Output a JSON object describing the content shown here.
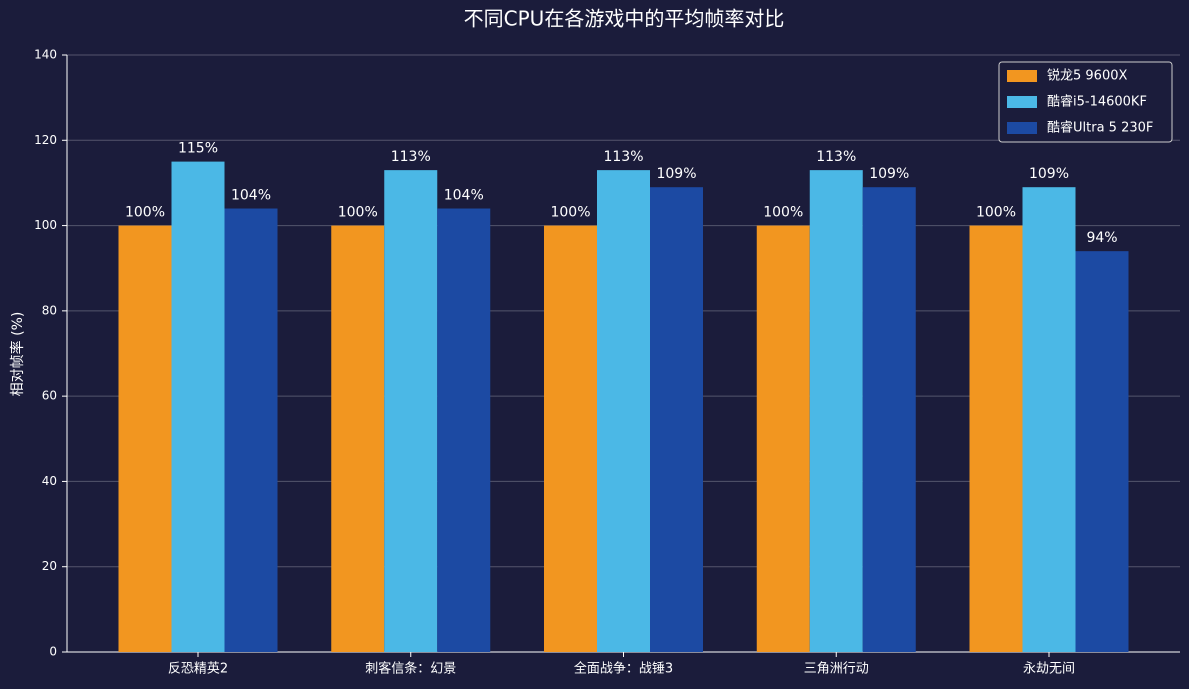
{
  "chart_data": {
    "type": "bar",
    "title": "不同CPU在各游戏中的平均帧率对比",
    "y_label": "相对帧率 (%)",
    "categories": [
      "反恐精英2",
      "刺客信条：幻景",
      "全面战争：战锤3",
      "三角洲行动",
      "永劫无间"
    ],
    "series": [
      {
        "name": "锐龙5 9600X",
        "color": "#f29620",
        "values": [
          100,
          100,
          100,
          100,
          100
        ],
        "value_labels": [
          "100%",
          "100%",
          "100%",
          "100%",
          "100%"
        ]
      },
      {
        "name": "酷睿i5-14600KF",
        "color": "#4bb8e6",
        "values": [
          115,
          113,
          113,
          113,
          109
        ],
        "value_labels": [
          "115%",
          "113%",
          "113%",
          "113%",
          "109%"
        ]
      },
      {
        "name": "酷睿Ultra 5 230F",
        "color": "#1c4aa3",
        "values": [
          104,
          104,
          109,
          109,
          94
        ],
        "value_labels": [
          "104%",
          "104%",
          "109%",
          "109%",
          "94%"
        ]
      }
    ],
    "ylim": [
      0,
      140
    ],
    "yticks": [
      0,
      20,
      40,
      60,
      80,
      100,
      120,
      140
    ],
    "grid": true,
    "legend": "upper right"
  }
}
